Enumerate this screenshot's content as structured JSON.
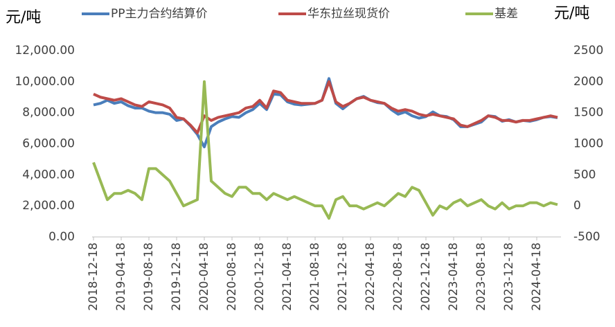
{
  "chart_data": {
    "type": "line",
    "y_label": "元/吨",
    "y2_label": "元/吨",
    "categories": [
      "2018-12-18",
      null,
      null,
      null,
      "2019-04-18",
      null,
      null,
      null,
      "2019-08-18",
      null,
      null,
      null,
      "2019-12-18",
      null,
      null,
      null,
      "2020-04-18",
      null,
      null,
      null,
      "2020-08-18",
      null,
      null,
      null,
      "2020-12-18",
      null,
      null,
      null,
      "2021-04-18",
      null,
      null,
      null,
      "2021-08-18",
      null,
      null,
      null,
      "2021-12-18",
      null,
      null,
      null,
      "2022-04-18",
      null,
      null,
      null,
      "2022-08-18",
      null,
      null,
      null,
      "2022-12-18",
      null,
      null,
      null,
      "2023-04-18",
      null,
      null,
      null,
      "2023-08-18",
      null,
      null,
      null,
      "2023-12-18",
      null,
      null,
      null,
      "2024-04-18",
      null,
      null,
      null
    ],
    "series": [
      {
        "name": "PP主力合约结算价",
        "color": "#4a7ebb",
        "values": [
          8500,
          8600,
          8800,
          8600,
          8700,
          8450,
          8300,
          8300,
          8100,
          8000,
          8000,
          7900,
          7500,
          7600,
          7150,
          6600,
          5800,
          7100,
          7400,
          7600,
          7750,
          7700,
          8000,
          8200,
          8600,
          8200,
          9200,
          9150,
          8700,
          8550,
          8500,
          8550,
          8600,
          8800,
          10200,
          8600,
          8250,
          8600,
          8900,
          9050,
          8800,
          8650,
          8600,
          8200,
          7900,
          8050,
          7800,
          7650,
          7750,
          8050,
          7800,
          7750,
          7550,
          7100,
          7100,
          7250,
          7400,
          7800,
          7750,
          7450,
          7550,
          7400,
          7500,
          7450,
          7550,
          7700,
          7750,
          7680
        ]
      },
      {
        "name": "华东拉丝现货价",
        "color": "#be4b48",
        "values": [
          9200,
          9000,
          8900,
          8800,
          8900,
          8700,
          8500,
          8400,
          8700,
          8600,
          8500,
          8300,
          7700,
          7600,
          7200,
          6700,
          7800,
          7500,
          7700,
          7800,
          7900,
          8000,
          8300,
          8400,
          8800,
          8300,
          9400,
          9300,
          8800,
          8700,
          8600,
          8600,
          8600,
          8800,
          10000,
          8700,
          8400,
          8600,
          8900,
          9000,
          8800,
          8700,
          8600,
          8300,
          8100,
          8200,
          8100,
          7900,
          7800,
          7900,
          7800,
          7700,
          7600,
          7200,
          7100,
          7300,
          7500,
          7800,
          7700,
          7500,
          7500,
          7400,
          7500,
          7500,
          7600,
          7700,
          7800,
          7700
        ]
      },
      {
        "name": "基差",
        "color": "#98b954",
        "axis": "y2",
        "values": [
          700,
          400,
          100,
          200,
          200,
          250,
          200,
          100,
          600,
          600,
          500,
          400,
          200,
          0,
          50,
          100,
          2000,
          400,
          300,
          200,
          150,
          300,
          300,
          200,
          200,
          100,
          200,
          150,
          100,
          150,
          100,
          50,
          0,
          0,
          -200,
          100,
          150,
          0,
          0,
          -50,
          0,
          50,
          0,
          100,
          200,
          150,
          300,
          250,
          50,
          -150,
          0,
          -50,
          50,
          100,
          0,
          50,
          100,
          0,
          -50,
          50,
          -50,
          0,
          0,
          50,
          50,
          0,
          50,
          20
        ]
      }
    ],
    "ylim": [
      0,
      12000
    ],
    "yticks": [
      {
        "value": 0,
        "label": "0.00"
      },
      {
        "value": 2000,
        "label": "2,000.00"
      },
      {
        "value": 4000,
        "label": "4,000.00"
      },
      {
        "value": 6000,
        "label": "6,000.00"
      },
      {
        "value": 8000,
        "label": "8,000.00"
      },
      {
        "value": 10000,
        "label": "10,000.00"
      },
      {
        "value": 12000,
        "label": "12,000.00"
      }
    ],
    "y2lim": [
      -500,
      2500
    ],
    "y2ticks": [
      -500,
      0,
      500,
      1000,
      1500,
      2000,
      2500
    ],
    "grid": false
  }
}
